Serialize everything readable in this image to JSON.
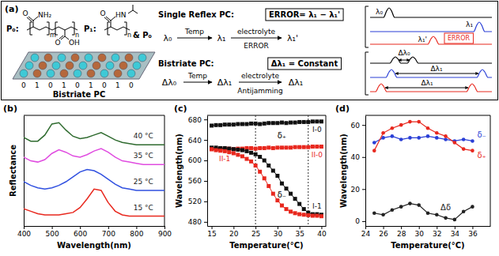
{
  "chart_data": [
    {
      "type": "line",
      "title": "(b)",
      "x_label": "Wavelength(nm)",
      "y_label": "Reflectance",
      "x": [
        400,
        425,
        450,
        475,
        500,
        525,
        550,
        575,
        600,
        625,
        650,
        675,
        700,
        725,
        750,
        775,
        800,
        825,
        850,
        875,
        900
      ],
      "series": [
        {
          "name": "40 °C",
          "color": "#2f6b2f",
          "values": [
            7.2,
            6.9,
            6.9,
            7.4,
            8.3,
            8.4,
            7.8,
            7.3,
            7.1,
            7.2,
            7.4,
            7.6,
            7.3,
            7.0,
            6.8,
            6.7,
            6.6,
            6.6,
            6.6,
            6.6,
            6.6
          ]
        },
        {
          "name": "35 °C",
          "color": "#e04ce0",
          "values": [
            5.6,
            5.3,
            5.2,
            5.4,
            5.9,
            6.2,
            6.0,
            5.7,
            5.6,
            5.8,
            6.1,
            6.3,
            6.0,
            5.6,
            5.3,
            5.2,
            5.1,
            5.0,
            5.0,
            5.0,
            5.0
          ]
        },
        {
          "name": "25 °C",
          "color": "#3050e0",
          "values": [
            3.6,
            3.3,
            3.1,
            3.0,
            3.1,
            3.3,
            3.6,
            4.0,
            4.4,
            4.6,
            4.5,
            4.2,
            3.8,
            3.4,
            3.1,
            3.0,
            2.9,
            2.9,
            2.9,
            2.9,
            2.9
          ]
        },
        {
          "name": "15 °C",
          "color": "#e8281e",
          "values": [
            1.4,
            1.2,
            1.0,
            0.9,
            0.9,
            0.9,
            1.0,
            1.1,
            1.5,
            2.2,
            3.0,
            2.9,
            1.9,
            1.2,
            0.9,
            0.8,
            0.8,
            0.8,
            0.8,
            0.8,
            0.8
          ]
        }
      ],
      "xlim": [
        400,
        900
      ],
      "xticks": [
        400,
        500,
        600,
        700,
        800,
        900
      ],
      "ylim": [
        0,
        9
      ],
      "yticks": [],
      "tick_labels": "x"
    },
    {
      "type": "line",
      "title": "(c)",
      "x_label": "Temperature(°C)",
      "y_label": "Wavelength(nm)",
      "marker": "square",
      "x": [
        15,
        16,
        17,
        18,
        19,
        20,
        21,
        22,
        23,
        24,
        25,
        26,
        27,
        28,
        29,
        30,
        31,
        32,
        33,
        34,
        35,
        36,
        37,
        38,
        39,
        40
      ],
      "series": [
        {
          "name": "I-0",
          "color": "#111111",
          "values": [
            668,
            669,
            669,
            670,
            670,
            670,
            671,
            671,
            671,
            672,
            672,
            671,
            672,
            673,
            673,
            673,
            674,
            673,
            674,
            674,
            675,
            675,
            675,
            676,
            676,
            676
          ]
        },
        {
          "name": "II-0",
          "color": "#e8281e",
          "values": [
            622,
            622,
            623,
            623,
            623,
            622,
            623,
            623,
            624,
            624,
            623,
            624,
            624,
            625,
            624,
            625,
            625,
            625,
            625,
            626,
            626,
            626,
            626,
            627,
            627,
            627
          ]
        },
        {
          "name": "I-1",
          "color": "#111111",
          "values": [
            625,
            625,
            624,
            624,
            623,
            622,
            621,
            620,
            618,
            615,
            612,
            607,
            600,
            590,
            580,
            570,
            555,
            545,
            535,
            525,
            515,
            505,
            498,
            495,
            495,
            494
          ]
        },
        {
          "name": "II-1",
          "color": "#e8281e",
          "values": [
            622,
            620,
            619,
            618,
            616,
            614,
            611,
            608,
            603,
            598,
            590,
            578,
            565,
            550,
            535,
            522,
            512,
            505,
            500,
            497,
            495,
            494,
            493,
            492,
            492,
            491
          ]
        }
      ],
      "vlines": [
        25,
        37
      ],
      "annotations": [
        "δ₊",
        "δ₋"
      ],
      "xlim": [
        14,
        41
      ],
      "xticks": [
        15,
        20,
        25,
        30,
        35,
        40
      ],
      "ylim": [
        472,
        688
      ],
      "yticks": [
        480,
        520,
        560,
        600,
        640,
        680
      ]
    },
    {
      "type": "line",
      "title": "(d)",
      "x_label": "Temperature(°C)",
      "y_label": "Wavelength(nm)",
      "marker": "circle",
      "x": [
        25,
        26,
        27,
        28,
        29,
        30,
        31,
        32,
        33,
        34,
        35,
        36
      ],
      "series": [
        {
          "name": "δ₋",
          "color": "#2a3fd6",
          "values": [
            49,
            52,
            53,
            51,
            52,
            52,
            53,
            52,
            51,
            50,
            51,
            50
          ]
        },
        {
          "name": "δ₊",
          "color": "#e8281e",
          "values": [
            44,
            55,
            58,
            60,
            62,
            62,
            58,
            55,
            53,
            49,
            45,
            44
          ]
        },
        {
          "name": "Δδ",
          "color": "#222222",
          "values": [
            5,
            4,
            7,
            9,
            11,
            10,
            5,
            4,
            2,
            1,
            6,
            9
          ]
        }
      ],
      "xlim": [
        24,
        38
      ],
      "xticks": [
        24,
        26,
        28,
        30,
        32,
        34,
        36
      ],
      "ylim": [
        -3,
        66
      ],
      "yticks": [
        0,
        20,
        40,
        60
      ]
    }
  ],
  "diagram": {
    "label": "(a)",
    "polymers": {
      "p0_label": "P₀:",
      "p0_groups": [
        "NH₂",
        "O",
        "O",
        "OH"
      ],
      "p0_repeats": [
        "m",
        "n"
      ],
      "p1_label": "P₁:",
      "p1_groups": [
        "O",
        "HN"
      ],
      "p1_repeats": [
        "n"
      ],
      "mix": "& P₀"
    },
    "array": {
      "stripes": "0 1 0 1 0 1 0 1 0",
      "label": "Bistriate PC"
    },
    "single": {
      "title": "Single Reflex PC:",
      "formula": "ERROR= λ₁ − λ₁'",
      "start": "λ₀",
      "step1": "Temp",
      "mid": "λ₁",
      "step2": "electrolyte",
      "step2_below": "ERROR",
      "end": "λ₁'"
    },
    "bistriate": {
      "title": "Bistriate PC:",
      "formula": "Δλ₁ = Constant",
      "start": "Δλ₀",
      "step1": "Temp",
      "mid": "Δλ₁",
      "step2": "electrolyte",
      "step2_below": "Antijamming",
      "end": "Δλ₁"
    },
    "schematic_top": {
      "labels": [
        "λ₀",
        "λ₁",
        "λ₁'",
        "ERROR"
      ]
    },
    "schematic_bottom": {
      "labels": [
        "Δλ₀",
        "Δλ₁",
        "Δλ₁"
      ]
    }
  }
}
